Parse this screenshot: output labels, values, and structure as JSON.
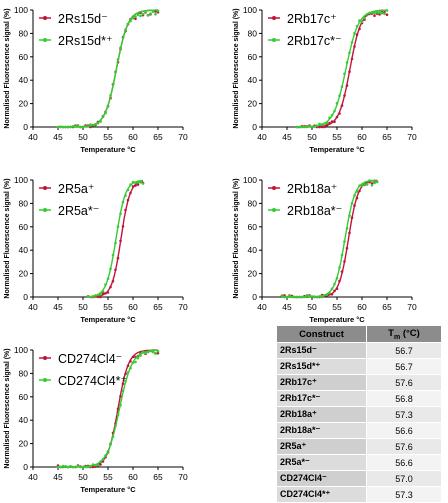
{
  "colors": {
    "series_a": "#c0143c",
    "series_b": "#33cc33"
  },
  "chart_data": [
    {
      "type": "line",
      "xlabel": "Temperature °C",
      "ylabel": "Normalised Fluorescence signal (%)",
      "xlim": [
        40,
        70
      ],
      "ylim": [
        0,
        100
      ],
      "xticks": [
        40,
        45,
        50,
        55,
        60,
        65,
        70
      ],
      "yticks": [
        0,
        20,
        40,
        60,
        80,
        100
      ],
      "legend_position": "top-left",
      "series": [
        {
          "name": "2Rs15d⁻",
          "color": "#c0143c",
          "tm": 56.7,
          "slope": 1.15,
          "x_range": [
            45,
            65
          ]
        },
        {
          "name": "2Rs15d*⁺",
          "color": "#33cc33",
          "tm": 56.7,
          "slope": 1.15,
          "x_range": [
            45,
            65
          ]
        }
      ]
    },
    {
      "type": "line",
      "xlabel": "Temperature °C",
      "ylabel": "Normalised Fluorescence signal (%)",
      "xlim": [
        40,
        70
      ],
      "ylim": [
        0,
        100
      ],
      "xticks": [
        40,
        45,
        50,
        55,
        60,
        65,
        70
      ],
      "yticks": [
        0,
        20,
        40,
        60,
        80,
        100
      ],
      "legend_position": "top-left",
      "series": [
        {
          "name": "2Rb17c⁺",
          "color": "#c0143c",
          "tm": 57.6,
          "slope": 1.1,
          "x_range": [
            47,
            65
          ]
        },
        {
          "name": "2Rb17c*⁻",
          "color": "#33cc33",
          "tm": 56.8,
          "slope": 1.25,
          "x_range": [
            47,
            65
          ]
        }
      ]
    },
    {
      "type": "line",
      "xlabel": "Temperature °C",
      "ylabel": "Normalised Fluorescence signal (%)",
      "xlim": [
        40,
        70
      ],
      "ylim": [
        0,
        100
      ],
      "xticks": [
        40,
        45,
        50,
        55,
        60,
        65,
        70
      ],
      "yticks": [
        0,
        20,
        40,
        60,
        80,
        100
      ],
      "legend_position": "top-left",
      "series": [
        {
          "name": "2R5a⁺",
          "color": "#c0143c",
          "tm": 57.6,
          "slope": 0.9,
          "x_range": [
            51,
            62
          ]
        },
        {
          "name": "2R5a*⁻",
          "color": "#33cc33",
          "tm": 56.6,
          "slope": 0.95,
          "x_range": [
            51,
            62
          ]
        }
      ]
    },
    {
      "type": "line",
      "xlabel": "Temperature °C",
      "ylabel": "Normalised Fluorescence signal (%)",
      "xlim": [
        40,
        70
      ],
      "ylim": [
        0,
        100
      ],
      "xticks": [
        40,
        45,
        50,
        55,
        60,
        65,
        70
      ],
      "yticks": [
        0,
        20,
        40,
        60,
        80,
        100
      ],
      "legend_position": "top-left",
      "series": [
        {
          "name": "2Rb18a⁺",
          "color": "#c0143c",
          "tm": 57.3,
          "slope": 0.95,
          "x_range": [
            44,
            63
          ]
        },
        {
          "name": "2Rb18a*⁻",
          "color": "#33cc33",
          "tm": 56.6,
          "slope": 1.0,
          "x_range": [
            44,
            63
          ]
        }
      ]
    },
    {
      "type": "line",
      "xlabel": "Temperature °C",
      "ylabel": "Normalised Fluorescence signal (%)",
      "xlim": [
        40,
        70
      ],
      "ylim": [
        0,
        100
      ],
      "xticks": [
        40,
        45,
        50,
        55,
        60,
        65,
        70
      ],
      "yticks": [
        0,
        20,
        40,
        60,
        80,
        100
      ],
      "legend_position": "top-left",
      "series": [
        {
          "name": "CD274Cl4⁻",
          "color": "#c0143c",
          "tm": 57.0,
          "slope": 1.05,
          "x_range": [
            45,
            65
          ]
        },
        {
          "name": "CD274Cl4*⁺",
          "color": "#33cc33",
          "tm": 57.3,
          "slope": 1.25,
          "x_range": [
            45,
            65
          ]
        }
      ]
    },
    {
      "type": "table",
      "columns": [
        "Construct",
        "Tm (°C)"
      ],
      "rows": [
        [
          "2Rs15d⁻",
          "56.7"
        ],
        [
          "2Rs15d*⁺",
          "56.7"
        ],
        [
          "2Rb17c⁺",
          "57.6"
        ],
        [
          "2Rb17c*⁻",
          "56.8"
        ],
        [
          "2Rb18a⁺",
          "57.3"
        ],
        [
          "2Rb18a*⁻",
          "56.6"
        ],
        [
          "2R5a⁺",
          "57.6"
        ],
        [
          "2R5a*⁻",
          "56.6"
        ],
        [
          "CD274Cl4⁻",
          "57.0"
        ],
        [
          "CD274Cl4*⁺",
          "57.3"
        ]
      ]
    }
  ],
  "table": {
    "header_construct": "Construct",
    "header_tm_main": "T",
    "header_tm_sub": "m",
    "header_tm_unit": " (°C)"
  }
}
